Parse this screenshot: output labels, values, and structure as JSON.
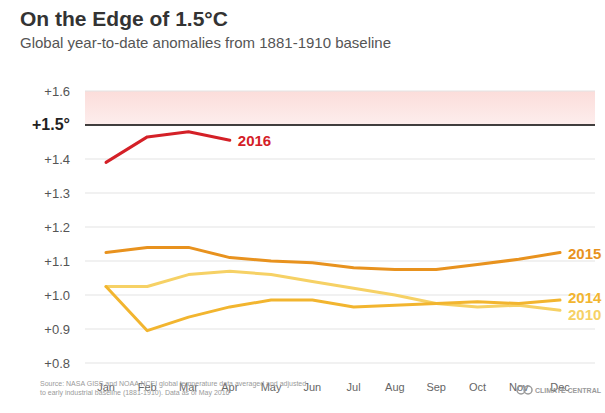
{
  "chart_data": {
    "type": "line",
    "title": "On the Edge of 1.5°C",
    "subtitle": "Global year-to-date anomalies from 1881-1910 baseline",
    "source": "Source: NASA GISS and NOAA NCEI global temperature data averaged and adjusted to early industrial baseline (1881-1910). Data as of May 2016",
    "credit": "CLIMATE CENTRAL",
    "categories": [
      "Jan",
      "Feb",
      "Mar",
      "Apr",
      "May",
      "Jun",
      "Jul",
      "Aug",
      "Sep",
      "Oct",
      "Nov",
      "Dec"
    ],
    "ylim": [
      0.8,
      1.6
    ],
    "yticks": [
      {
        "value": 0.8,
        "label": "+0.8"
      },
      {
        "value": 0.9,
        "label": "+0.9"
      },
      {
        "value": 1.0,
        "label": "+1.0"
      },
      {
        "value": 1.1,
        "label": "+1.1"
      },
      {
        "value": 1.2,
        "label": "+1.2"
      },
      {
        "value": 1.3,
        "label": "+1.3"
      },
      {
        "value": 1.4,
        "label": "+1.4"
      },
      {
        "value": 1.5,
        "label": "+1.5°"
      },
      {
        "value": 1.6,
        "label": "+1.6"
      }
    ],
    "grid": true,
    "series": [
      {
        "name": "2016",
        "color": "#d42027",
        "values": [
          1.39,
          1.465,
          1.48,
          1.455,
          null,
          null,
          null,
          null,
          null,
          null,
          null,
          null
        ]
      },
      {
        "name": "2015",
        "color": "#e8921e",
        "values": [
          1.125,
          1.14,
          1.14,
          1.11,
          1.1,
          1.095,
          1.08,
          1.075,
          1.075,
          1.09,
          1.105,
          1.125
        ]
      },
      {
        "name": "2014",
        "color": "#f2b52f",
        "values": [
          1.025,
          0.895,
          0.935,
          0.965,
          0.985,
          0.985,
          0.965,
          0.97,
          0.975,
          0.98,
          0.975,
          0.985
        ]
      },
      {
        "name": "2010",
        "color": "#f6d165",
        "values": [
          1.025,
          1.025,
          1.06,
          1.07,
          1.06,
          1.04,
          1.02,
          1.0,
          0.975,
          0.965,
          0.97,
          0.955
        ]
      }
    ]
  }
}
